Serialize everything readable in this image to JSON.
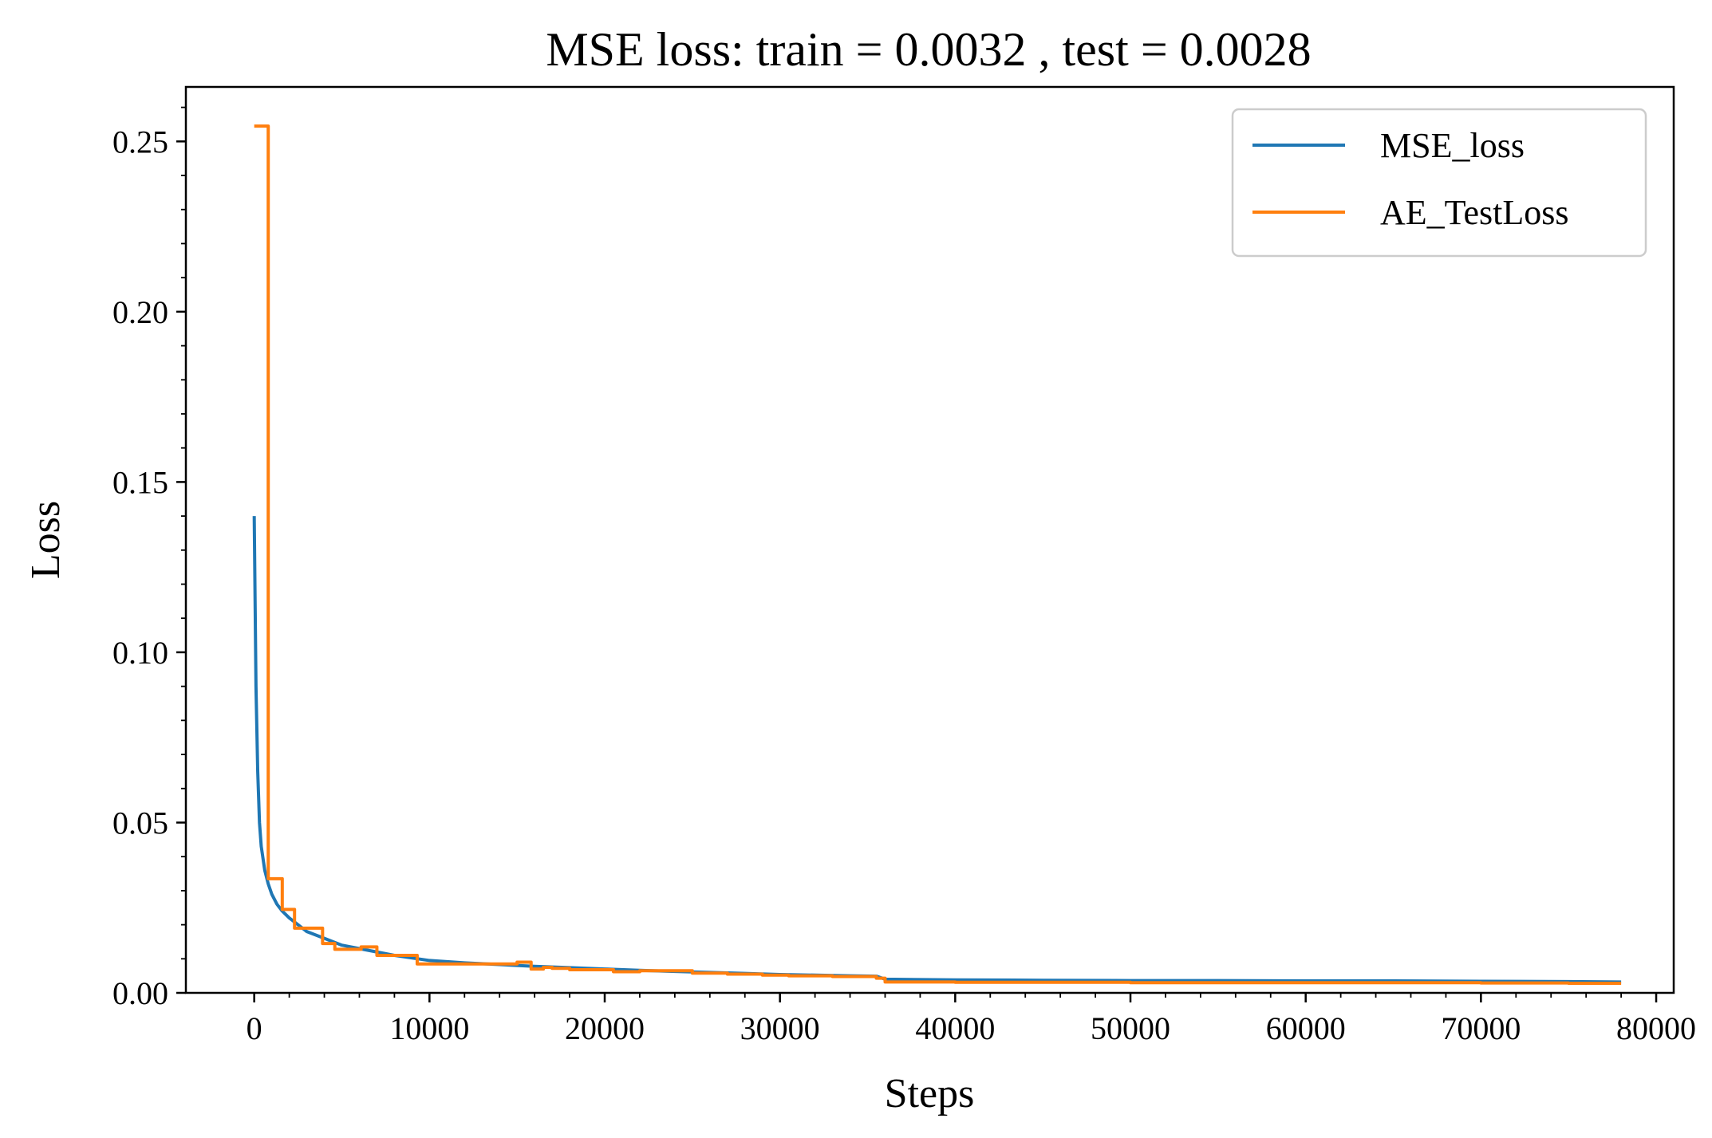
{
  "chart_data": {
    "type": "line",
    "title": "MSE loss: train = 0.0032 , test = 0.0028",
    "xlabel": "Steps",
    "ylabel": "Loss",
    "xlim": [
      -3900,
      81000
    ],
    "ylim": [
      0,
      0.266
    ],
    "x_ticks": [
      0,
      10000,
      20000,
      30000,
      40000,
      50000,
      60000,
      70000,
      80000
    ],
    "x_tick_labels": [
      "0",
      "10000",
      "20000",
      "30000",
      "40000",
      "50000",
      "60000",
      "70000",
      "80000"
    ],
    "y_ticks": [
      0.0,
      0.05,
      0.1,
      0.15,
      0.2,
      0.25
    ],
    "y_tick_labels": [
      "0.00",
      "0.05",
      "0.10",
      "0.15",
      "0.20",
      "0.25"
    ],
    "grid": false,
    "legend_position": "top-right",
    "series": [
      {
        "name": "MSE_loss",
        "color": "#1f77b4",
        "line_style": "line",
        "x": [
          0,
          100,
          200,
          300,
          400,
          600,
          800,
          1000,
          1300,
          1600,
          2000,
          2500,
          3000,
          4000,
          5000,
          6000,
          7000,
          8000,
          10000,
          12000,
          14000,
          16000,
          18000,
          20000,
          22000,
          24000,
          26000,
          28000,
          30000,
          32000,
          34000,
          35500,
          36000,
          40000,
          45000,
          50000,
          55000,
          60000,
          65000,
          70000,
          75000,
          78000
        ],
        "y": [
          0.14,
          0.09,
          0.065,
          0.05,
          0.043,
          0.036,
          0.032,
          0.029,
          0.026,
          0.024,
          0.022,
          0.02,
          0.018,
          0.016,
          0.014,
          0.013,
          0.012,
          0.011,
          0.0095,
          0.0088,
          0.0083,
          0.0078,
          0.0074,
          0.007,
          0.0066,
          0.0063,
          0.006,
          0.0057,
          0.0054,
          0.0052,
          0.005,
          0.0049,
          0.004,
          0.0038,
          0.0037,
          0.0036,
          0.0036,
          0.0035,
          0.0035,
          0.0034,
          0.0033,
          0.0032
        ]
      },
      {
        "name": "AE_TestLoss",
        "color": "#ff7f0e",
        "line_style": "step",
        "x": [
          0,
          800,
          1600,
          2300,
          3900,
          4600,
          6100,
          7000,
          9300,
          15000,
          15800,
          16500,
          17000,
          18000,
          20500,
          22000,
          25000,
          27000,
          29000,
          30500,
          33000,
          35500,
          36000,
          40000,
          50000,
          60000,
          70000,
          75000,
          78000
        ],
        "y": [
          0.2545,
          0.0335,
          0.0245,
          0.019,
          0.0145,
          0.0128,
          0.0135,
          0.011,
          0.0085,
          0.009,
          0.007,
          0.0075,
          0.0072,
          0.0068,
          0.0062,
          0.0065,
          0.0058,
          0.0055,
          0.0052,
          0.005,
          0.0048,
          0.0043,
          0.0032,
          0.0031,
          0.003,
          0.003,
          0.0029,
          0.0028,
          0.0028
        ]
      }
    ]
  }
}
